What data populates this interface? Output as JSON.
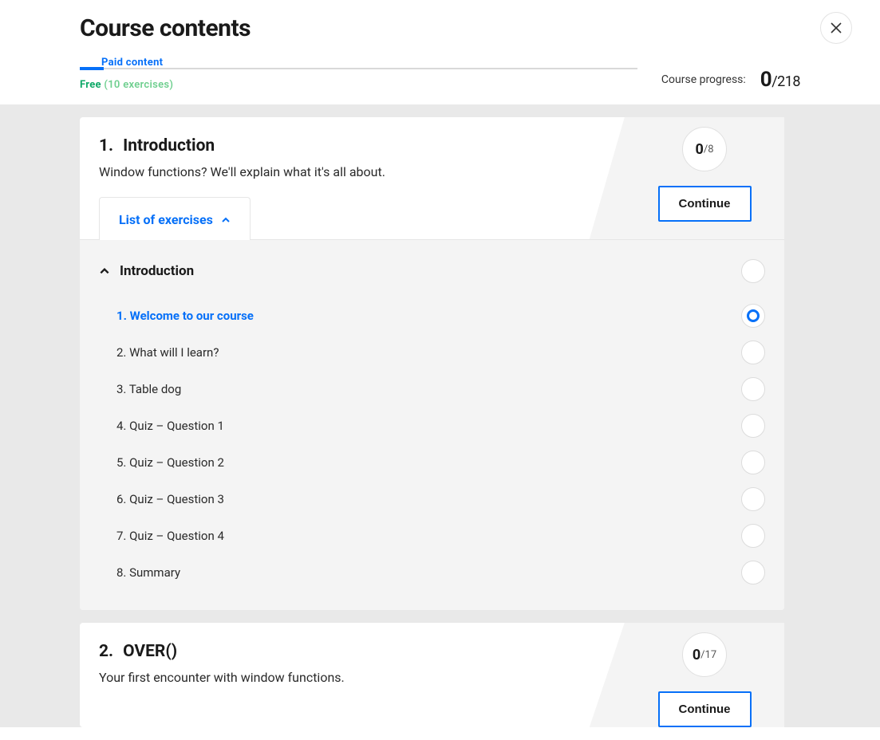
{
  "page_title": "Course contents",
  "progress": {
    "paid_label": "Paid content",
    "free_label": "Free",
    "free_paren": "(10 exercises)",
    "label": "Course progress:",
    "done": "0",
    "sep": "/",
    "total": "218"
  },
  "colors": {
    "accent_blue": "#0670f8",
    "free_green": "#0fa968"
  },
  "sections": [
    {
      "num": "1.",
      "title": "Introduction",
      "desc": "Window functions? We'll explain what it's all about.",
      "done": "0",
      "total": "/8",
      "continue_label": "Continue",
      "tab_label": "List of exercises",
      "subsection_title": "Introduction",
      "exercises": [
        {
          "label": "1. Welcome to our course",
          "active": true,
          "current": true
        },
        {
          "label": "2. What will I learn?",
          "active": false,
          "current": false
        },
        {
          "label": "3. Table dog",
          "active": false,
          "current": false
        },
        {
          "label": "4. Quiz – Question 1",
          "active": false,
          "current": false
        },
        {
          "label": "5. Quiz – Question 2",
          "active": false,
          "current": false
        },
        {
          "label": "6. Quiz – Question 3",
          "active": false,
          "current": false
        },
        {
          "label": "7. Quiz – Question 4",
          "active": false,
          "current": false
        },
        {
          "label": "8. Summary",
          "active": false,
          "current": false
        }
      ]
    },
    {
      "num": "2.",
      "title": "OVER()",
      "desc": "Your first encounter with window functions.",
      "done": "0",
      "total": "/17",
      "continue_label": "Continue"
    }
  ]
}
